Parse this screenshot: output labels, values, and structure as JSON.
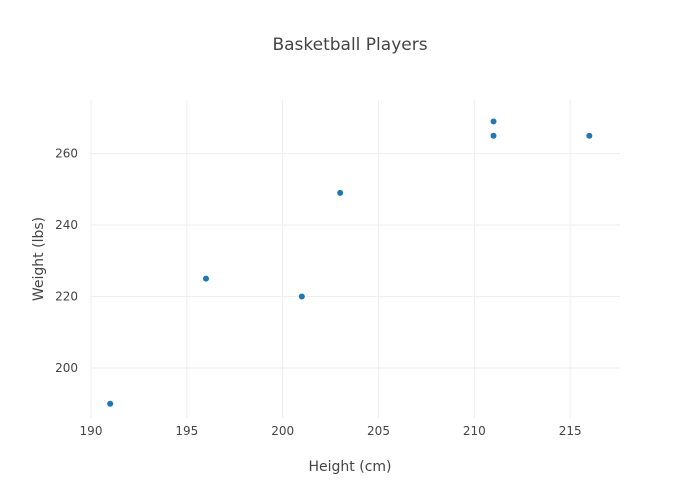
{
  "chart_data": {
    "type": "scatter",
    "title": "Basketball Players",
    "xlabel": "Height (cm)",
    "ylabel": "Weight (lbs)",
    "xlim": [
      190,
      217.6
    ],
    "ylim": [
      186,
      275
    ],
    "xticks": [
      190,
      195,
      200,
      205,
      210,
      215
    ],
    "yticks": [
      200,
      220,
      240,
      260
    ],
    "grid": true,
    "marker_color": "#1f77b4",
    "series": [
      {
        "x": [
          191,
          196,
          201,
          203,
          211,
          211,
          216
        ],
        "y": [
          190,
          225,
          220,
          249,
          269,
          265,
          265
        ]
      }
    ]
  }
}
